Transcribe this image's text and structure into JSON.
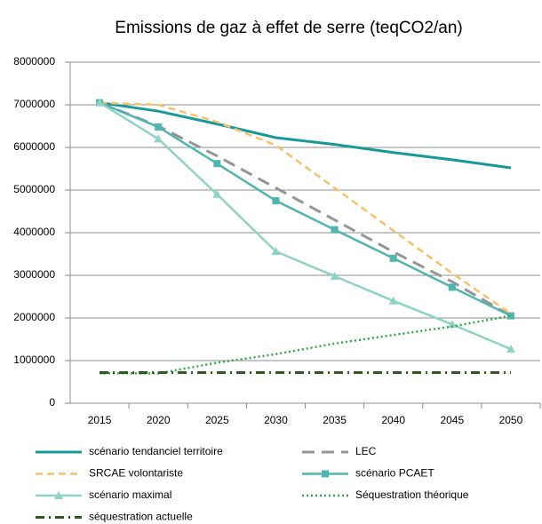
{
  "chart_data": {
    "type": "line",
    "title": "Emissions de gaz à effet de serre (teqCO2/an)",
    "categories": [
      "2015",
      "2020",
      "2025",
      "2030",
      "2035",
      "2040",
      "2045",
      "2050"
    ],
    "ylim": [
      0,
      8000000
    ],
    "yticks": [
      0,
      1000000,
      2000000,
      3000000,
      4000000,
      5000000,
      6000000,
      7000000,
      8000000
    ],
    "grid": true,
    "series": [
      {
        "name": "scénario tendanciel territoire",
        "color": "#17999a",
        "line_style": "solid",
        "width": 3,
        "marker": "none",
        "values": [
          7050000,
          6850000,
          6550000,
          6230000,
          6070000,
          5880000,
          5710000,
          5520000
        ]
      },
      {
        "name": "LEC",
        "color": "#959595",
        "line_style": "longdash",
        "width": 3,
        "marker": "none",
        "values": [
          7050000,
          6500000,
          5800000,
          5050000,
          4300000,
          3550000,
          2850000,
          2050000
        ]
      },
      {
        "name": "SRCAE volontariste",
        "color": "#f9c06a",
        "line_style": "dashed",
        "width": 2.5,
        "marker": "none",
        "values": [
          7050000,
          7000000,
          6600000,
          6050000,
          5050000,
          4050000,
          3050000,
          2100000
        ]
      },
      {
        "name": "scénario PCAET",
        "color": "#4fb5b0",
        "line_style": "solid",
        "width": 2.5,
        "marker": "square",
        "values": [
          7050000,
          6480000,
          5620000,
          4750000,
          4070000,
          3400000,
          2720000,
          2050000
        ]
      },
      {
        "name": "scénario maximal",
        "color": "#8ed3c3",
        "line_style": "solid",
        "width": 2.5,
        "marker": "triangle",
        "values": [
          7050000,
          6200000,
          4900000,
          3560000,
          2980000,
          2400000,
          1850000,
          1270000
        ]
      },
      {
        "name": "Séquestration théorique",
        "color": "#2eaa4a",
        "line_style": "dotted",
        "width": 2.5,
        "marker": "none",
        "values": [
          700000,
          700000,
          950000,
          1150000,
          1400000,
          1600000,
          1800000,
          2050000
        ]
      },
      {
        "name": "séquestration actuelle",
        "color": "#2d5a1e",
        "line_style": "dashdot",
        "width": 3,
        "marker": "none",
        "values": [
          720000,
          720000,
          720000,
          720000,
          720000,
          720000,
          720000,
          720000
        ]
      }
    ]
  }
}
